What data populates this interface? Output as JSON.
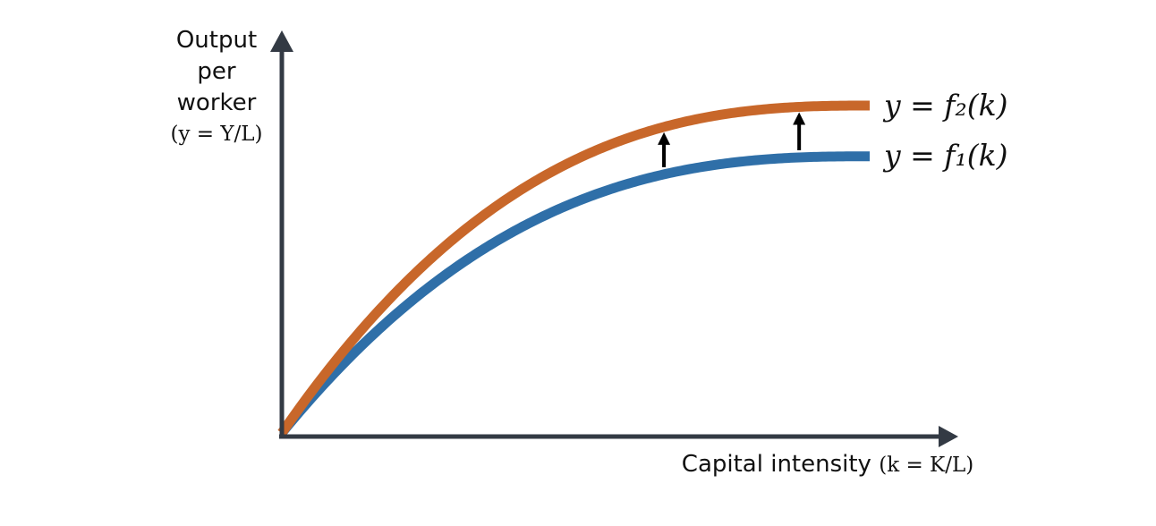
{
  "axes": {
    "y_label_lines": [
      "Output",
      "per",
      "worker"
    ],
    "y_label_formula": "(y = Y/L)",
    "x_label_text": "Capital intensity",
    "x_label_formula": "(k = K/L)",
    "color": "#333a44"
  },
  "curves": [
    {
      "label": "y = f₂(k)",
      "color": "#c8672a",
      "level": 1.0
    },
    {
      "label": "y = f₁(k)",
      "color": "#2f6fa8",
      "level": 0.845
    }
  ],
  "arrows": {
    "color": "#000000",
    "positions": [
      0.65,
      0.88
    ]
  }
}
